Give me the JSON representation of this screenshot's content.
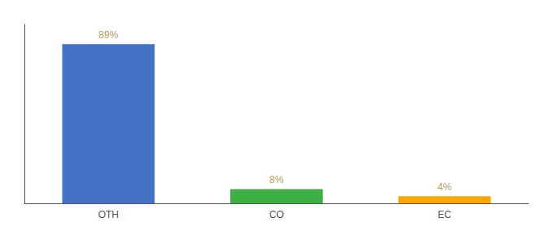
{
  "chart_data": {
    "type": "bar",
    "categories": [
      "OTH",
      "CO",
      "EC"
    ],
    "values": [
      89,
      8,
      4
    ],
    "value_labels": [
      "89%",
      "8%",
      "4%"
    ],
    "colors": [
      "#4472C4",
      "#3CB043",
      "#FFA500"
    ],
    "ylim": [
      0,
      100
    ],
    "grid": false,
    "data_labels": true,
    "tick_labels": "x"
  }
}
